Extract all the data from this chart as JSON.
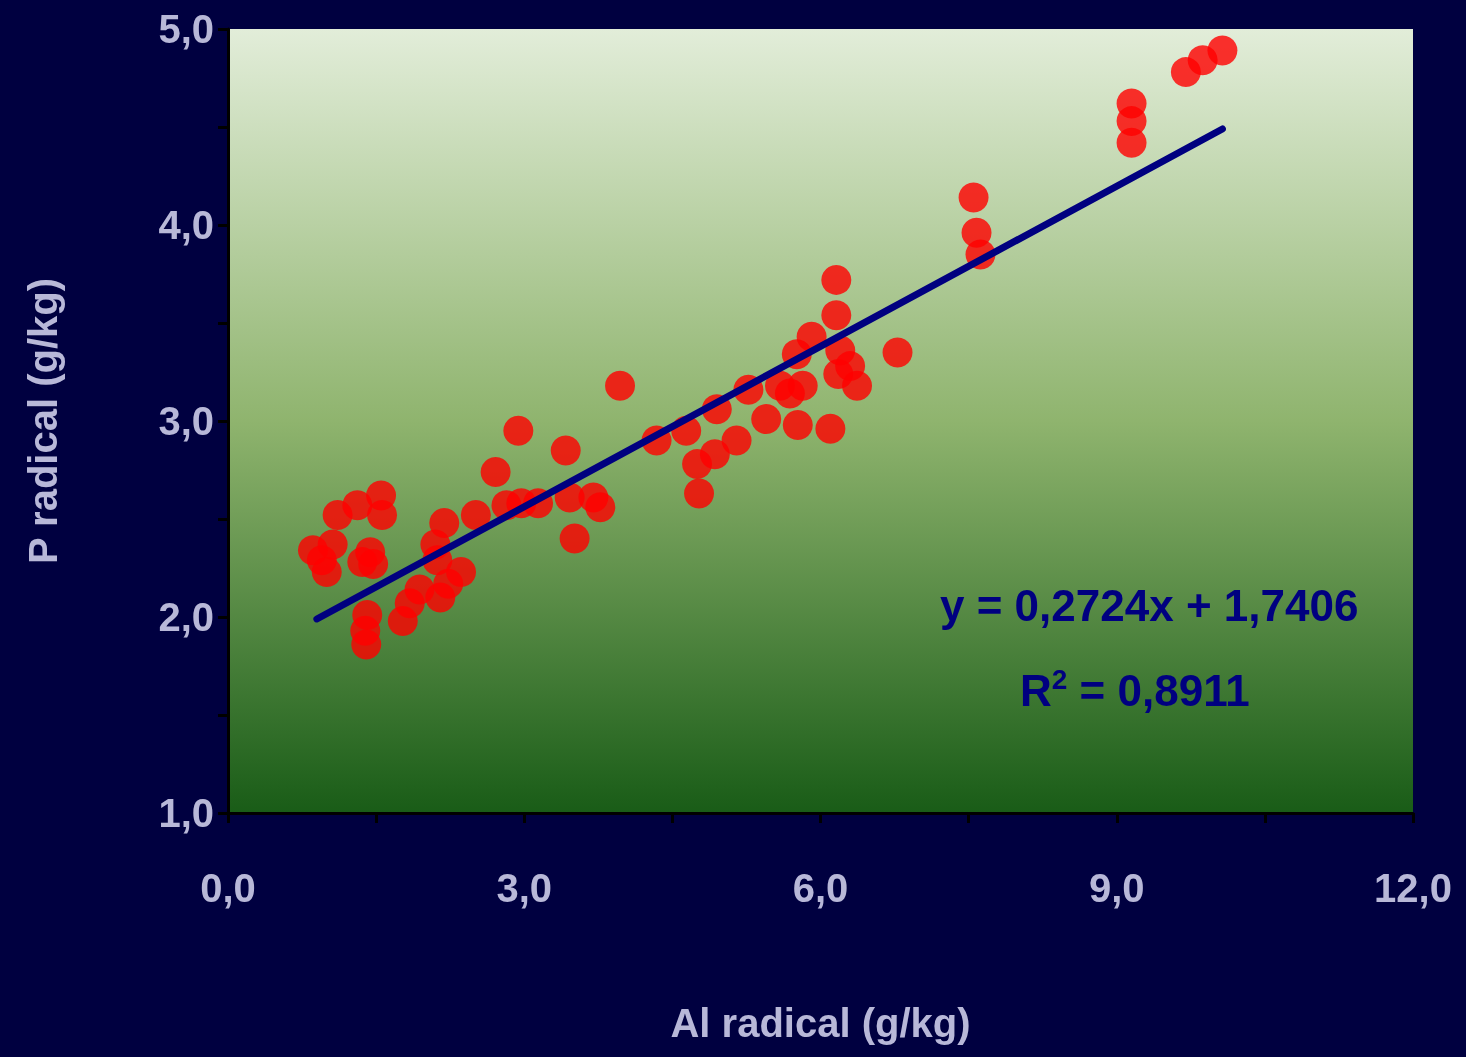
{
  "chart_data": {
    "type": "scatter",
    "xlabel": "Al radical (g/kg)",
    "ylabel": "P radical (g/kg)",
    "xlim": [
      0,
      12
    ],
    "ylim": [
      1,
      5
    ],
    "xticks": [
      {
        "value": 0,
        "label": "0,0"
      },
      {
        "value": 1.5,
        "label": null
      },
      {
        "value": 3,
        "label": "3,0"
      },
      {
        "value": 4.5,
        "label": null
      },
      {
        "value": 6,
        "label": "6,0"
      },
      {
        "value": 7.5,
        "label": null
      },
      {
        "value": 9,
        "label": "9,0"
      },
      {
        "value": 10.5,
        "label": null
      },
      {
        "value": 12,
        "label": "12,0"
      }
    ],
    "yticks": [
      {
        "value": 1,
        "label": "1,0"
      },
      {
        "value": 1.5,
        "label": null
      },
      {
        "value": 2,
        "label": "2,0"
      },
      {
        "value": 2.5,
        "label": null
      },
      {
        "value": 3,
        "label": "3,0"
      },
      {
        "value": 3.5,
        "label": null
      },
      {
        "value": 4,
        "label": "4,0"
      },
      {
        "value": 4.5,
        "label": null
      },
      {
        "value": 5,
        "label": "5,0"
      }
    ],
    "grid": false,
    "marker": "circle",
    "annotations": [
      "y = 0,2724x + 1,7406",
      "R$^{2}$ = 0,8911"
    ],
    "series": [
      {
        "color": "#ff0000",
        "x": [
          0.86,
          0.95,
          1.0,
          1.06,
          1.11,
          1.31,
          1.36,
          1.39,
          1.4,
          1.41,
          1.44,
          1.47,
          1.55,
          1.56,
          1.77,
          1.84,
          1.94,
          2.1,
          2.12,
          2.15,
          2.19,
          2.23,
          2.36,
          2.51,
          2.71,
          2.82,
          2.94,
          2.97,
          3.14,
          3.42,
          3.46,
          3.51,
          3.7,
          3.77,
          3.97,
          4.34,
          4.64,
          4.75,
          4.77,
          4.93,
          4.95,
          5.15,
          5.27,
          5.45,
          5.59,
          5.69,
          5.76,
          5.77,
          5.82,
          5.91,
          6.1,
          6.16,
          6.16,
          6.2,
          6.18,
          6.3,
          6.37,
          6.78,
          7.55,
          7.58,
          7.62,
          9.15,
          9.15,
          9.15,
          9.7,
          9.87,
          10.07
        ],
        "values": [
          2.34,
          2.29,
          2.23,
          2.37,
          2.52,
          2.57,
          2.28,
          1.93,
          1.86,
          2.01,
          2.33,
          2.27,
          2.62,
          2.52,
          1.98,
          2.07,
          2.14,
          2.37,
          2.29,
          2.1,
          2.48,
          2.17,
          2.23,
          2.52,
          2.74,
          2.57,
          2.95,
          2.58,
          2.58,
          2.85,
          2.61,
          2.4,
          2.61,
          2.56,
          3.18,
          2.9,
          2.95,
          2.78,
          2.63,
          2.83,
          3.06,
          2.9,
          3.16,
          3.01,
          3.18,
          3.14,
          3.34,
          2.98,
          3.18,
          3.43,
          2.96,
          3.72,
          3.54,
          3.36,
          3.24,
          3.28,
          3.18,
          3.35,
          4.14,
          3.96,
          3.85,
          4.42,
          4.53,
          4.62,
          4.78,
          4.84,
          4.89
        ]
      },
      {
        "type": "line",
        "color": "#000080",
        "marker": "none",
        "line_style": "solid",
        "x": [
          0.9,
          10.07
        ],
        "values": [
          1.99,
          4.49
        ]
      }
    ]
  }
}
